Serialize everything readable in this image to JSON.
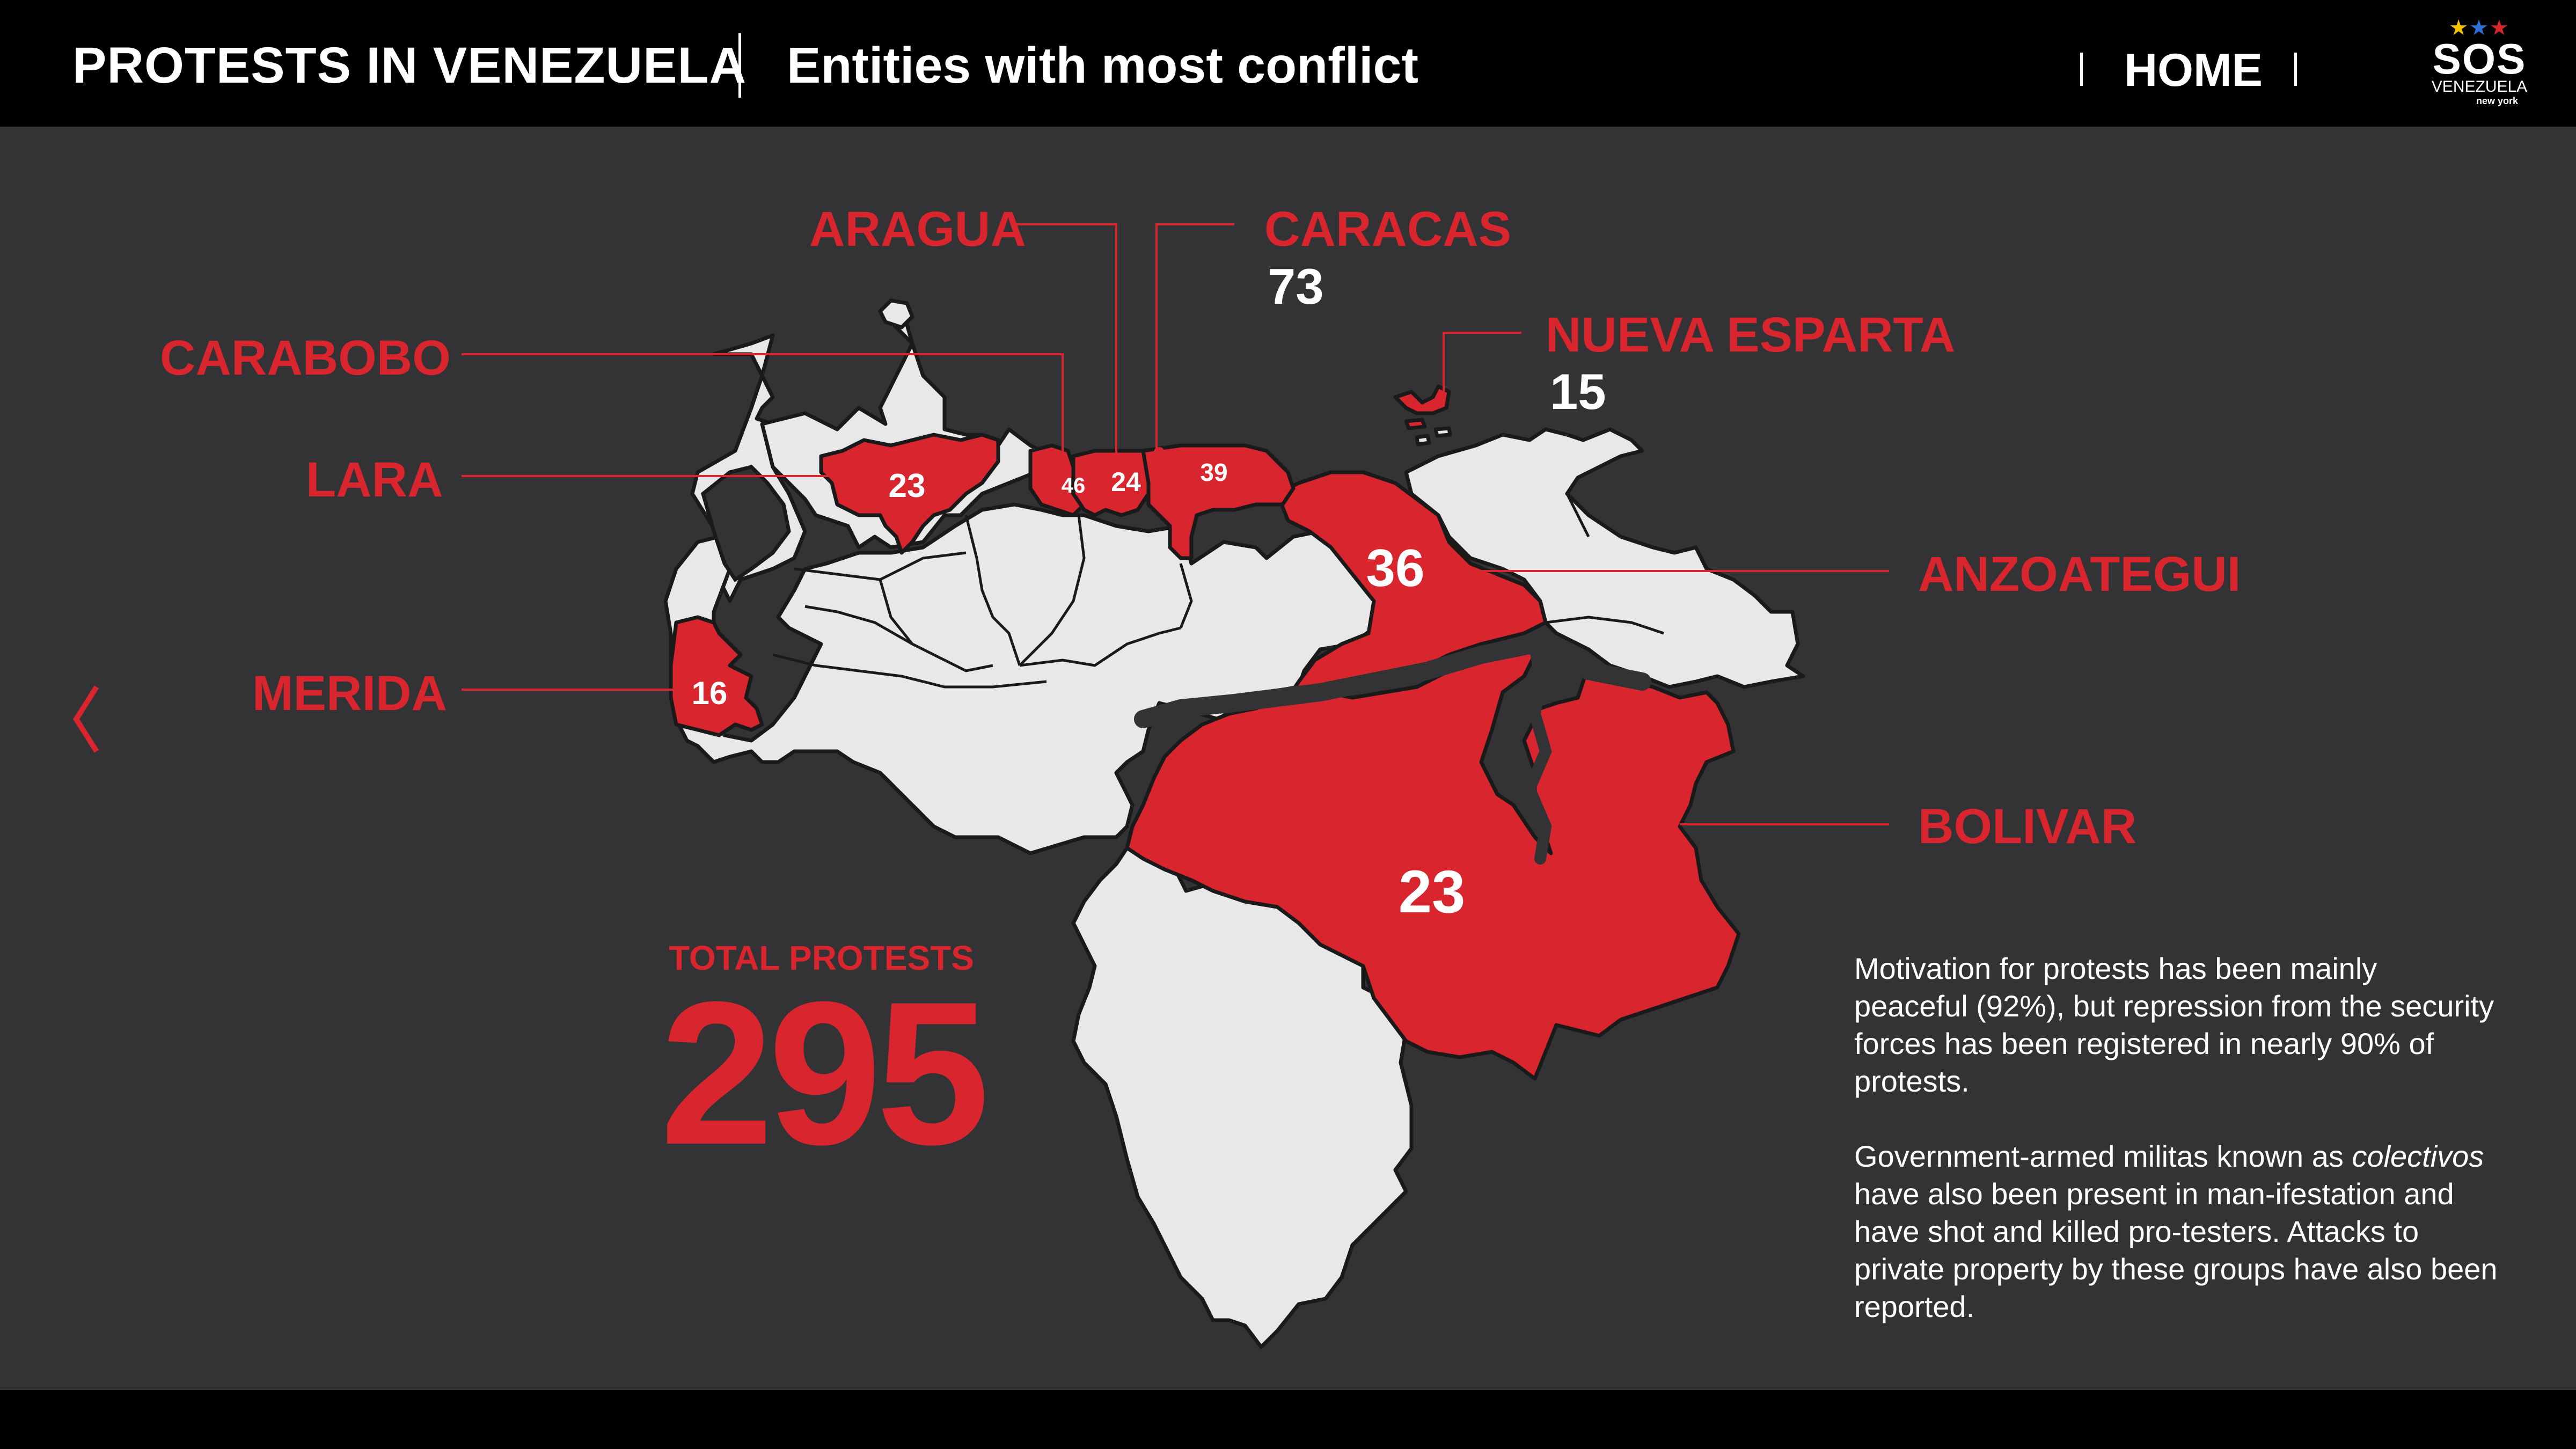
{
  "header": {
    "title": "PROTESTS IN VENEZUELA",
    "subtitle": "Entities with most conflict",
    "home_label": "HOME",
    "logo": {
      "brand": "SOS",
      "name": "VENEZUELA",
      "city": "new york"
    }
  },
  "colors": {
    "accent_red": "#d8252e",
    "background": "#333335",
    "bar": "#000000",
    "land": "#e8e8e9"
  },
  "icons": {
    "back": "chevron-left-icon"
  },
  "states": [
    {
      "name": "ARAGUA",
      "value": "24"
    },
    {
      "name": "CARACAS",
      "value": "73"
    },
    {
      "name": "NUEVA ESPARTA",
      "value": "15"
    },
    {
      "name": "CARABOBO",
      "value": "46"
    },
    {
      "name": "LARA",
      "value": "23"
    },
    {
      "name": "ANZOATEGUI",
      "value": "36"
    },
    {
      "name": "MERIDA",
      "value": "16"
    },
    {
      "name": "BOLIVAR",
      "value": "23"
    },
    {
      "name": "",
      "value": "39"
    }
  ],
  "total": {
    "label": "TOTAL PROTESTS",
    "value": "295"
  },
  "text": {
    "p1": "Motivation for protests has been mainly peaceful (92%), but repression from the security forces has been registered in nearly 90% of protests.",
    "p2_em": "colectivos",
    "p2_start": "Government-armed militas known as ",
    "p2_end": " have also been present in man-ifestation and have shot and killed pro-testers. Attacks to private property by these groups have also been reported."
  }
}
